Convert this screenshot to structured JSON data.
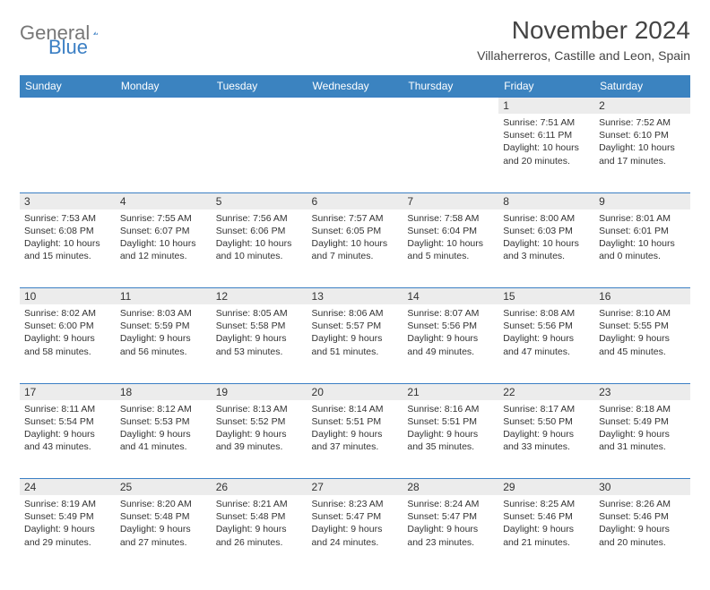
{
  "logo": {
    "text1": "General",
    "text2": "Blue",
    "shape_color": "#3b7fc4"
  },
  "title": "November 2024",
  "location": "Villaherreros, Castille and Leon, Spain",
  "colors": {
    "header_bg": "#3b83c0",
    "header_text": "#ffffff",
    "daynum_bg": "#ececec",
    "border": "#3b7fc4",
    "text": "#333333",
    "logo_gray": "#777777"
  },
  "weekdays": [
    "Sunday",
    "Monday",
    "Tuesday",
    "Wednesday",
    "Thursday",
    "Friday",
    "Saturday"
  ],
  "weeks": [
    [
      null,
      null,
      null,
      null,
      null,
      {
        "n": "1",
        "sr": "7:51 AM",
        "ss": "6:11 PM",
        "dl": "10 hours and 20 minutes."
      },
      {
        "n": "2",
        "sr": "7:52 AM",
        "ss": "6:10 PM",
        "dl": "10 hours and 17 minutes."
      }
    ],
    [
      {
        "n": "3",
        "sr": "7:53 AM",
        "ss": "6:08 PM",
        "dl": "10 hours and 15 minutes."
      },
      {
        "n": "4",
        "sr": "7:55 AM",
        "ss": "6:07 PM",
        "dl": "10 hours and 12 minutes."
      },
      {
        "n": "5",
        "sr": "7:56 AM",
        "ss": "6:06 PM",
        "dl": "10 hours and 10 minutes."
      },
      {
        "n": "6",
        "sr": "7:57 AM",
        "ss": "6:05 PM",
        "dl": "10 hours and 7 minutes."
      },
      {
        "n": "7",
        "sr": "7:58 AM",
        "ss": "6:04 PM",
        "dl": "10 hours and 5 minutes."
      },
      {
        "n": "8",
        "sr": "8:00 AM",
        "ss": "6:03 PM",
        "dl": "10 hours and 3 minutes."
      },
      {
        "n": "9",
        "sr": "8:01 AM",
        "ss": "6:01 PM",
        "dl": "10 hours and 0 minutes."
      }
    ],
    [
      {
        "n": "10",
        "sr": "8:02 AM",
        "ss": "6:00 PM",
        "dl": "9 hours and 58 minutes."
      },
      {
        "n": "11",
        "sr": "8:03 AM",
        "ss": "5:59 PM",
        "dl": "9 hours and 56 minutes."
      },
      {
        "n": "12",
        "sr": "8:05 AM",
        "ss": "5:58 PM",
        "dl": "9 hours and 53 minutes."
      },
      {
        "n": "13",
        "sr": "8:06 AM",
        "ss": "5:57 PM",
        "dl": "9 hours and 51 minutes."
      },
      {
        "n": "14",
        "sr": "8:07 AM",
        "ss": "5:56 PM",
        "dl": "9 hours and 49 minutes."
      },
      {
        "n": "15",
        "sr": "8:08 AM",
        "ss": "5:56 PM",
        "dl": "9 hours and 47 minutes."
      },
      {
        "n": "16",
        "sr": "8:10 AM",
        "ss": "5:55 PM",
        "dl": "9 hours and 45 minutes."
      }
    ],
    [
      {
        "n": "17",
        "sr": "8:11 AM",
        "ss": "5:54 PM",
        "dl": "9 hours and 43 minutes."
      },
      {
        "n": "18",
        "sr": "8:12 AM",
        "ss": "5:53 PM",
        "dl": "9 hours and 41 minutes."
      },
      {
        "n": "19",
        "sr": "8:13 AM",
        "ss": "5:52 PM",
        "dl": "9 hours and 39 minutes."
      },
      {
        "n": "20",
        "sr": "8:14 AM",
        "ss": "5:51 PM",
        "dl": "9 hours and 37 minutes."
      },
      {
        "n": "21",
        "sr": "8:16 AM",
        "ss": "5:51 PM",
        "dl": "9 hours and 35 minutes."
      },
      {
        "n": "22",
        "sr": "8:17 AM",
        "ss": "5:50 PM",
        "dl": "9 hours and 33 minutes."
      },
      {
        "n": "23",
        "sr": "8:18 AM",
        "ss": "5:49 PM",
        "dl": "9 hours and 31 minutes."
      }
    ],
    [
      {
        "n": "24",
        "sr": "8:19 AM",
        "ss": "5:49 PM",
        "dl": "9 hours and 29 minutes."
      },
      {
        "n": "25",
        "sr": "8:20 AM",
        "ss": "5:48 PM",
        "dl": "9 hours and 27 minutes."
      },
      {
        "n": "26",
        "sr": "8:21 AM",
        "ss": "5:48 PM",
        "dl": "9 hours and 26 minutes."
      },
      {
        "n": "27",
        "sr": "8:23 AM",
        "ss": "5:47 PM",
        "dl": "9 hours and 24 minutes."
      },
      {
        "n": "28",
        "sr": "8:24 AM",
        "ss": "5:47 PM",
        "dl": "9 hours and 23 minutes."
      },
      {
        "n": "29",
        "sr": "8:25 AM",
        "ss": "5:46 PM",
        "dl": "9 hours and 21 minutes."
      },
      {
        "n": "30",
        "sr": "8:26 AM",
        "ss": "5:46 PM",
        "dl": "9 hours and 20 minutes."
      }
    ]
  ],
  "labels": {
    "sunrise": "Sunrise:",
    "sunset": "Sunset:",
    "daylight": "Daylight:"
  }
}
